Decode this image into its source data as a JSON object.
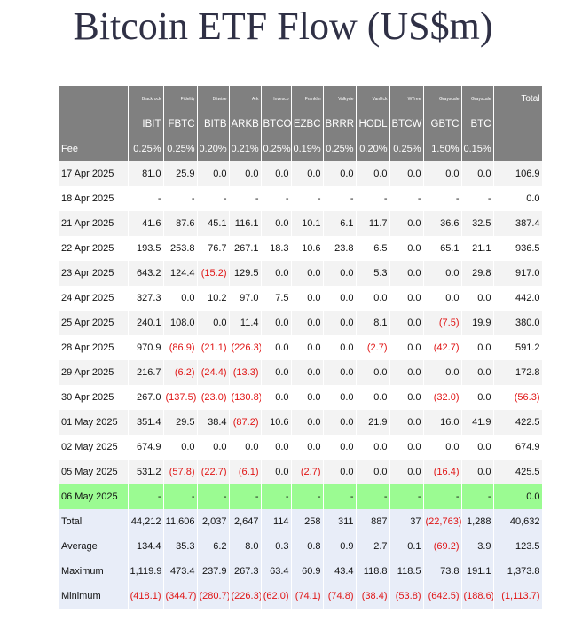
{
  "title": "Bitcoin ETF Flow (US$m)",
  "colors": {
    "header_bg": "#808080",
    "negative": "#e01414",
    "highlight": "#9bfb92",
    "stats_bg": "#e8edf8"
  },
  "header": {
    "issuers": [
      "Blackrock",
      "Fidelity",
      "Bitwise",
      "Ark",
      "Invesco",
      "Franklin",
      "Valkyrie",
      "VanEck",
      "WTree",
      "Grayscale",
      "Grayscale"
    ],
    "tickers": [
      "IBIT",
      "FBTC",
      "BITB",
      "ARKB",
      "BTCO",
      "EZBC",
      "BRRR",
      "HODL",
      "BTCW",
      "GBTC",
      "BTC"
    ],
    "total_label": "Total",
    "fee_label": "Fee",
    "fees": [
      "0.25%",
      "0.25%",
      "0.20%",
      "0.21%",
      "0.25%",
      "0.19%",
      "0.25%",
      "0.20%",
      "0.25%",
      "1.50%",
      "0.15%"
    ]
  },
  "rows": [
    {
      "date": "17 Apr 2025",
      "values": [
        "81.0",
        "25.9",
        "0.0",
        "0.0",
        "0.0",
        "0.0",
        "0.0",
        "0.0",
        "0.0",
        "0.0",
        "0.0"
      ],
      "total": "106.9"
    },
    {
      "date": "18 Apr 2025",
      "values": [
        "-",
        "-",
        "-",
        "-",
        "-",
        "-",
        "-",
        "-",
        "-",
        "-",
        "-"
      ],
      "total": "0.0"
    },
    {
      "date": "21 Apr 2025",
      "values": [
        "41.6",
        "87.6",
        "45.1",
        "116.1",
        "0.0",
        "10.1",
        "6.1",
        "11.7",
        "0.0",
        "36.6",
        "32.5"
      ],
      "total": "387.4"
    },
    {
      "date": "22 Apr 2025",
      "values": [
        "193.5",
        "253.8",
        "76.7",
        "267.1",
        "18.3",
        "10.6",
        "23.8",
        "6.5",
        "0.0",
        "65.1",
        "21.1"
      ],
      "total": "936.5"
    },
    {
      "date": "23 Apr 2025",
      "values": [
        "643.2",
        "124.4",
        "(15.2)",
        "129.5",
        "0.0",
        "0.0",
        "0.0",
        "5.3",
        "0.0",
        "0.0",
        "29.8"
      ],
      "total": "917.0"
    },
    {
      "date": "24 Apr 2025",
      "values": [
        "327.3",
        "0.0",
        "10.2",
        "97.0",
        "7.5",
        "0.0",
        "0.0",
        "0.0",
        "0.0",
        "0.0",
        "0.0"
      ],
      "total": "442.0"
    },
    {
      "date": "25 Apr 2025",
      "values": [
        "240.1",
        "108.0",
        "0.0",
        "11.4",
        "0.0",
        "0.0",
        "0.0",
        "8.1",
        "0.0",
        "(7.5)",
        "19.9"
      ],
      "total": "380.0"
    },
    {
      "date": "28 Apr 2025",
      "values": [
        "970.9",
        "(86.9)",
        "(21.1)",
        "(226.3)",
        "0.0",
        "0.0",
        "0.0",
        "(2.7)",
        "0.0",
        "(42.7)",
        "0.0"
      ],
      "total": "591.2"
    },
    {
      "date": "29 Apr 2025",
      "values": [
        "216.7",
        "(6.2)",
        "(24.4)",
        "(13.3)",
        "0.0",
        "0.0",
        "0.0",
        "0.0",
        "0.0",
        "0.0",
        "0.0"
      ],
      "total": "172.8"
    },
    {
      "date": "30 Apr 2025",
      "values": [
        "267.0",
        "(137.5)",
        "(23.0)",
        "(130.8)",
        "0.0",
        "0.0",
        "0.0",
        "0.0",
        "0.0",
        "(32.0)",
        "0.0"
      ],
      "total": "(56.3)"
    },
    {
      "date": "01 May 2025",
      "values": [
        "351.4",
        "29.5",
        "38.4",
        "(87.2)",
        "10.6",
        "0.0",
        "0.0",
        "21.9",
        "0.0",
        "16.0",
        "41.9"
      ],
      "total": "422.5"
    },
    {
      "date": "02 May 2025",
      "values": [
        "674.9",
        "0.0",
        "0.0",
        "0.0",
        "0.0",
        "0.0",
        "0.0",
        "0.0",
        "0.0",
        "0.0",
        "0.0"
      ],
      "total": "674.9"
    },
    {
      "date": "05 May 2025",
      "values": [
        "531.2",
        "(57.8)",
        "(22.7)",
        "(6.1)",
        "0.0",
        "(2.7)",
        "0.0",
        "0.0",
        "0.0",
        "(16.4)",
        "0.0"
      ],
      "total": "425.5"
    },
    {
      "date": "06 May 2025",
      "values": [
        "-",
        "-",
        "-",
        "-",
        "-",
        "-",
        "-",
        "-",
        "-",
        "-",
        "-"
      ],
      "total": "0.0",
      "highlight": true
    }
  ],
  "stats": [
    {
      "label": "Total",
      "values": [
        "44,212",
        "11,606",
        "2,037",
        "2,647",
        "114",
        "258",
        "311",
        "887",
        "37",
        "(22,763)",
        "1,288"
      ],
      "total": "40,632"
    },
    {
      "label": "Average",
      "values": [
        "134.4",
        "35.3",
        "6.2",
        "8.0",
        "0.3",
        "0.8",
        "0.9",
        "2.7",
        "0.1",
        "(69.2)",
        "3.9"
      ],
      "total": "123.5"
    },
    {
      "label": "Maximum",
      "values": [
        "1,119.9",
        "473.4",
        "237.9",
        "267.3",
        "63.4",
        "60.9",
        "43.4",
        "118.8",
        "118.5",
        "73.8",
        "191.1"
      ],
      "total": "1,373.8"
    },
    {
      "label": "Minimum",
      "values": [
        "(418.1)",
        "(344.7)",
        "(280.7)",
        "(226.3)",
        "(62.0)",
        "(74.1)",
        "(74.8)",
        "(38.4)",
        "(53.8)",
        "(642.5)",
        "(188.6)"
      ],
      "total": "(1,113.7)"
    }
  ]
}
